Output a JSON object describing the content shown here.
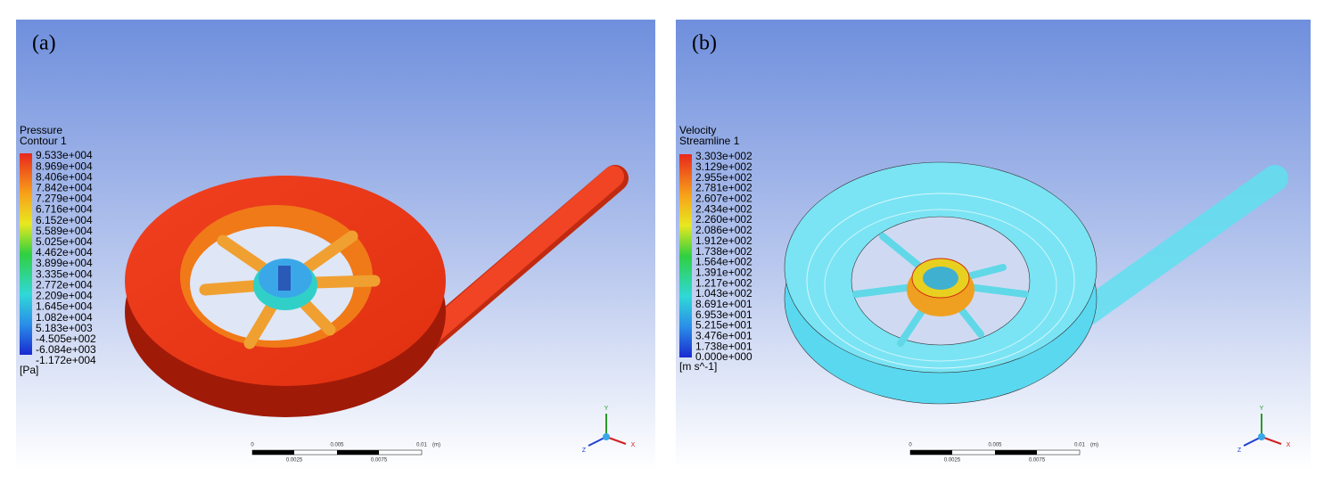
{
  "panels": [
    {
      "label": "(a)",
      "legend": {
        "title": "Pressure",
        "subtitle": "Contour 1",
        "ticks": [
          "9.533e+004",
          "8.969e+004",
          "8.406e+004",
          "7.842e+004",
          "7.279e+004",
          "6.716e+004",
          "6.152e+004",
          "5.589e+004",
          "5.025e+004",
          "4.462e+004",
          "3.899e+004",
          "3.335e+004",
          "2.772e+004",
          "2.209e+004",
          "1.645e+004",
          "1.082e+004",
          "5.183e+003",
          "-4.505e+002",
          "-6.084e+003",
          "-1.172e+004"
        ],
        "unit": "[Pa]"
      },
      "scale_bar": {
        "top": [
          "0",
          "0.005",
          "0.01",
          "(m)"
        ],
        "bottom": [
          "0.0025",
          "0.0075"
        ]
      },
      "axes": [
        "Y",
        "X",
        "Z"
      ]
    },
    {
      "label": "(b)",
      "legend": {
        "title": "Velocity",
        "subtitle": "Streamline 1",
        "ticks": [
          "3.303e+002",
          "3.129e+002",
          "2.955e+002",
          "2.781e+002",
          "2.607e+002",
          "2.434e+002",
          "2.260e+002",
          "2.086e+002",
          "1.912e+002",
          "1.738e+002",
          "1.564e+002",
          "1.391e+002",
          "1.217e+002",
          "1.043e+002",
          "8.691e+001",
          "6.953e+001",
          "5.215e+001",
          "3.476e+001",
          "1.738e+001",
          "0.000e+000"
        ],
        "unit": "[m s^-1]"
      },
      "scale_bar": {
        "top": [
          "0",
          "0.005",
          "0.01",
          "(m)"
        ],
        "bottom": [
          "0.0025",
          "0.0075"
        ]
      },
      "axes": [
        "Y",
        "X",
        "Z"
      ]
    }
  ]
}
